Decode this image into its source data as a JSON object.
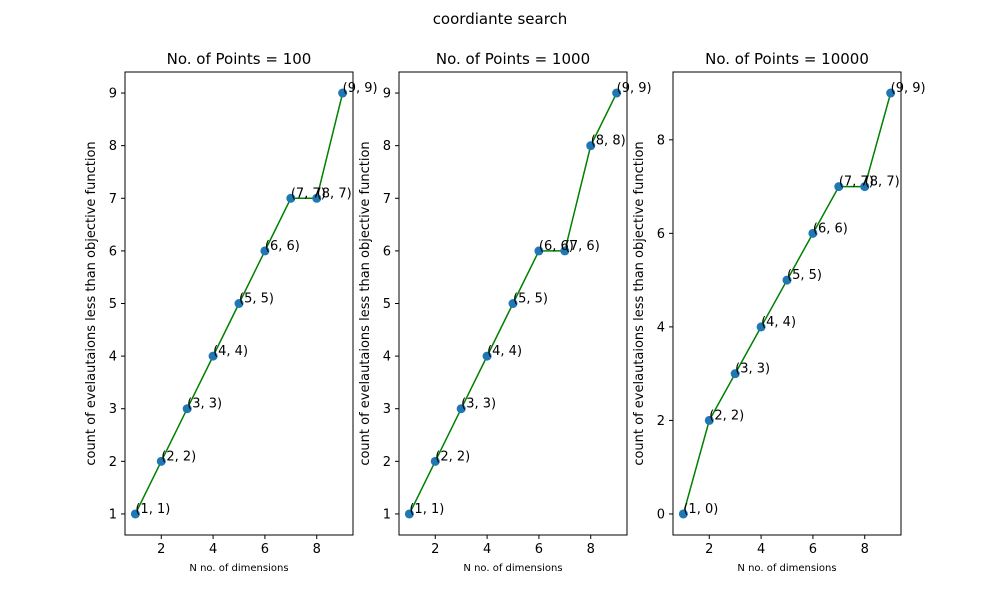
{
  "figure": {
    "suptitle": "coordiante search"
  },
  "chart_data": [
    {
      "type": "line",
      "title": "No. of Points = 100",
      "xlabel": "N no. of dimensions",
      "ylabel": "count of evelautaions less than objective function",
      "xlim": [
        0.6,
        9.4
      ],
      "ylim": [
        0.6,
        9.4
      ],
      "xticks": [
        2,
        4,
        6,
        8
      ],
      "yticks": [
        1,
        2,
        3,
        4,
        5,
        6,
        7,
        8,
        9
      ],
      "x": [
        1,
        2,
        3,
        4,
        5,
        6,
        7,
        8,
        9
      ],
      "y": [
        1,
        2,
        3,
        4,
        5,
        6,
        7,
        7,
        9
      ],
      "annotations": [
        "(1, 1)",
        "(2, 2)",
        "(3, 3)",
        "(4, 4)",
        "(5, 5)",
        "(6, 6)",
        "(7, 7)",
        "(8, 7)",
        "(9, 9)"
      ],
      "line_color": "#008000",
      "marker_color": "#1f77b4"
    },
    {
      "type": "line",
      "title": "No. of Points = 1000",
      "xlabel": "N no. of dimensions",
      "ylabel": "count of evelautaions less than objective function",
      "xlim": [
        0.6,
        9.4
      ],
      "ylim": [
        0.6,
        9.4
      ],
      "xticks": [
        2,
        4,
        6,
        8
      ],
      "yticks": [
        1,
        2,
        3,
        4,
        5,
        6,
        7,
        8,
        9
      ],
      "x": [
        1,
        2,
        3,
        4,
        5,
        6,
        7,
        8,
        9
      ],
      "y": [
        1,
        2,
        3,
        4,
        5,
        6,
        6,
        8,
        9
      ],
      "annotations": [
        "(1, 1)",
        "(2, 2)",
        "(3, 3)",
        "(4, 4)",
        "(5, 5)",
        "(6, 6)",
        "(7, 6)",
        "(8, 8)",
        "(9, 9)"
      ],
      "line_color": "#008000",
      "marker_color": "#1f77b4"
    },
    {
      "type": "line",
      "title": "No. of Points = 10000",
      "xlabel": "N no. of dimensions",
      "ylabel": "count of evelautaions less than objective function",
      "xlim": [
        0.6,
        9.4
      ],
      "ylim": [
        -0.45,
        9.45
      ],
      "xticks": [
        2,
        4,
        6,
        8
      ],
      "yticks": [
        0,
        2,
        4,
        6,
        8
      ],
      "x": [
        1,
        2,
        3,
        4,
        5,
        6,
        7,
        8,
        9
      ],
      "y": [
        0,
        2,
        3,
        4,
        5,
        6,
        7,
        7,
        9
      ],
      "annotations": [
        "(1, 0)",
        "(2, 2)",
        "(3, 3)",
        "(4, 4)",
        "(5, 5)",
        "(6, 6)",
        "(7, 7)",
        "(8, 7)",
        "(9, 9)"
      ],
      "line_color": "#008000",
      "marker_color": "#1f77b4"
    }
  ]
}
